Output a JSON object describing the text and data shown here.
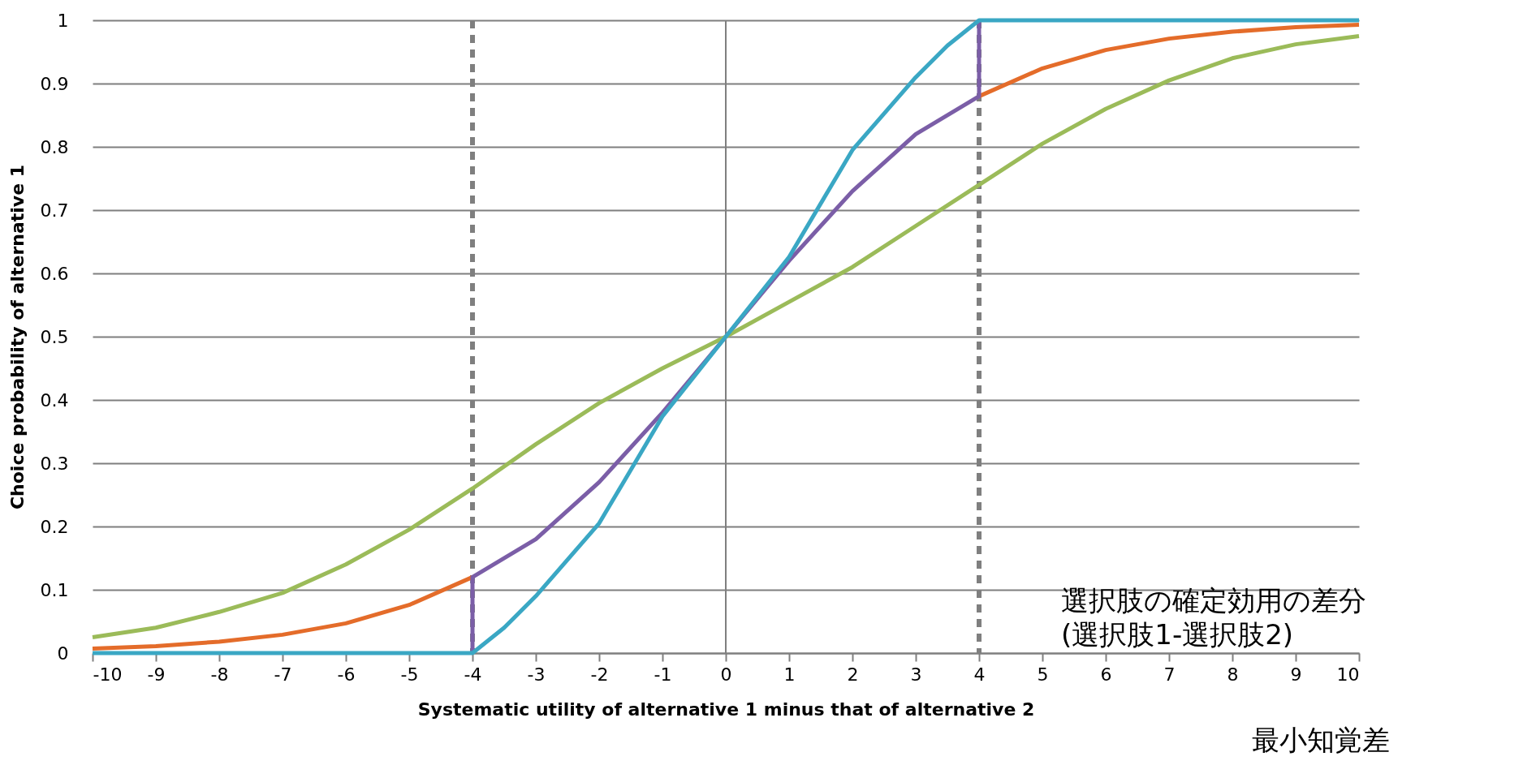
{
  "chart_data": {
    "type": "line",
    "xlabel": "Systematic utility of alternative 1 minus that of alternative 2",
    "ylabel": "Choice probability of alternative 1",
    "xlim": [
      -10,
      10
    ],
    "xticks": [
      -10,
      -9,
      -8,
      -7,
      -6,
      -5,
      -4,
      -3,
      -2,
      -1,
      0,
      1,
      2,
      3,
      4,
      5,
      6,
      7,
      8,
      9,
      10
    ],
    "ylim": [
      0,
      1
    ],
    "yticks": [
      0,
      0.1,
      0.2,
      0.3,
      0.4,
      0.5,
      0.6,
      0.7,
      0.8,
      0.9,
      1
    ],
    "grid": "y",
    "marker": "none",
    "line_style": "solid",
    "series": [
      {
        "color": "#e46c2a",
        "x": [
          -10,
          -9,
          -8,
          -7,
          -6,
          -5,
          -4
        ],
        "values": [
          0.007,
          0.011,
          0.018,
          0.029,
          0.047,
          0.076,
          0.12
        ]
      },
      {
        "color": "#e46c2a",
        "x": [
          4,
          5,
          6,
          7,
          8,
          9,
          10
        ],
        "values": [
          0.88,
          0.924,
          0.953,
          0.971,
          0.982,
          0.989,
          0.993
        ]
      },
      {
        "color": "#7b5ea7",
        "x": [
          -4,
          -4,
          -3,
          -2,
          -1,
          0,
          1,
          2,
          3,
          4,
          4
        ],
        "values": [
          0,
          0.12,
          0.18,
          0.27,
          0.38,
          0.5,
          0.62,
          0.73,
          0.82,
          0.88,
          1
        ]
      },
      {
        "color": "#9bbb59",
        "x": [
          -10,
          -9,
          -8,
          -7,
          -6,
          -5,
          -4,
          -3,
          -2,
          -1,
          0,
          1,
          2,
          3,
          4,
          5,
          6,
          7,
          8,
          9,
          10
        ],
        "values": [
          0.025,
          0.04,
          0.065,
          0.095,
          0.14,
          0.195,
          0.26,
          0.33,
          0.395,
          0.45,
          0.5,
          0.555,
          0.61,
          0.675,
          0.74,
          0.805,
          0.86,
          0.905,
          0.94,
          0.962,
          0.975
        ]
      },
      {
        "color": "#3aa7c4",
        "x": [
          -10,
          -4,
          -3.5,
          -3,
          -2,
          -1,
          0,
          1,
          2,
          3,
          3.5,
          4,
          10
        ],
        "values": [
          0,
          0,
          0.04,
          0.09,
          0.205,
          0.374,
          0.5,
          0.626,
          0.795,
          0.91,
          0.96,
          1,
          1
        ]
      }
    ],
    "ref_lines": [
      {
        "axis": "x",
        "value": 0,
        "color": "#7f7f7f",
        "line_style": "solid"
      },
      {
        "axis": "x",
        "value": -4,
        "color": "#7f7f7f",
        "line_style": "dashed"
      },
      {
        "axis": "x",
        "value": 4,
        "color": "#7f7f7f",
        "line_style": "dashed"
      }
    ],
    "annotations": [
      "選択肢の確定効用の差分\n(選択肢1-選択肢2)",
      "最小知覚差"
    ]
  }
}
